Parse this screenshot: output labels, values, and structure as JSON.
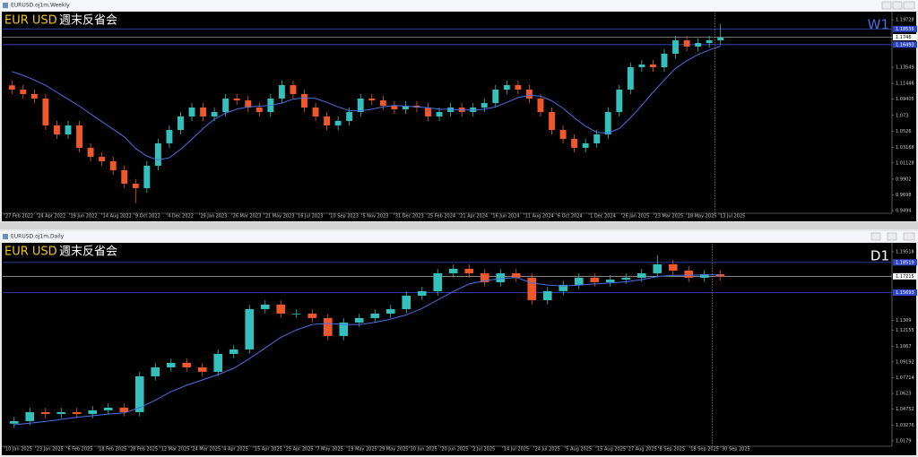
{
  "chart_data": [
    {
      "type": "candlestick",
      "window_title": "EURUSD.oj1m,Weekly",
      "symbol": "EUR USD",
      "memo": "週末反省会",
      "timeframe": "W1",
      "up_color": "#35c1bb",
      "down_color": "#f0582a",
      "ma_color": "#4a6fe3",
      "timeframe_color": "#4a6fe3",
      "open": [
        1.112,
        1.1065,
        1.1007,
        1.0949,
        1.06,
        1.0483,
        1.06,
        1.0309,
        1.0192,
        1.0134,
        1.0018,
        0.9843,
        0.9785,
        1.0076,
        1.0367,
        1.0541,
        1.0716,
        1.0832,
        1.0716,
        1.0774,
        1.0949,
        1.0925,
        1.0832,
        1.0774,
        1.0949,
        1.1123,
        1.1007,
        1.0832,
        1.0716,
        1.06,
        1.0658,
        1.0774,
        1.0949,
        1.0925,
        1.0856,
        1.0809,
        1.0856,
        1.0832,
        1.0716,
        1.0774,
        1.0832,
        1.0774,
        1.0832,
        1.0891,
        1.1065,
        1.1123,
        1.1065,
        1.0949,
        1.0774,
        1.0541,
        1.0425,
        1.0309,
        1.0367,
        1.0483,
        1.0774,
        1.1065,
        1.1356,
        1.1391,
        1.1356,
        1.1531,
        1.1705,
        1.1624,
        1.167,
        1.1705
      ],
      "high": [
        1.118,
        1.1125,
        1.1067,
        1.1009,
        1.066,
        1.066,
        1.066,
        1.0369,
        1.0252,
        1.0194,
        1.0078,
        0.9903,
        1.0136,
        1.0427,
        1.0601,
        1.0776,
        1.0892,
        1.0892,
        1.0834,
        1.1009,
        1.1009,
        1.0985,
        1.0892,
        1.1009,
        1.1183,
        1.1183,
        1.1067,
        1.0892,
        1.0776,
        1.0718,
        1.0834,
        1.1009,
        1.1009,
        1.0985,
        1.0916,
        1.0916,
        1.0916,
        1.0892,
        1.0834,
        1.0892,
        1.0892,
        1.0892,
        1.0951,
        1.1125,
        1.1183,
        1.1183,
        1.1125,
        1.1009,
        1.0834,
        1.0601,
        1.0485,
        1.0427,
        1.0543,
        1.0834,
        1.1125,
        1.1416,
        1.1451,
        1.1451,
        1.1591,
        1.1765,
        1.1765,
        1.173,
        1.1765,
        1.192
      ],
      "low": [
        1.1005,
        1.0947,
        1.0889,
        1.054,
        1.0423,
        1.0423,
        1.0249,
        1.0132,
        1.0074,
        0.9958,
        0.9783,
        0.959,
        0.9725,
        1.0016,
        1.0307,
        1.0481,
        1.0656,
        1.0656,
        1.0656,
        1.0714,
        1.0865,
        1.0772,
        1.0714,
        1.0714,
        1.0889,
        1.0947,
        1.0772,
        1.0656,
        1.054,
        1.054,
        1.0598,
        1.0714,
        1.0865,
        1.0796,
        1.0749,
        1.0749,
        1.0772,
        1.0656,
        1.0656,
        1.0714,
        1.0714,
        1.0714,
        1.0772,
        1.0831,
        1.1005,
        1.1005,
        1.0889,
        1.0714,
        1.0481,
        1.0365,
        1.0249,
        1.0249,
        1.0307,
        1.0423,
        1.0714,
        1.1005,
        1.1296,
        1.1296,
        1.1296,
        1.1471,
        1.1564,
        1.1564,
        1.161,
        1.1645
      ],
      "close": [
        1.1065,
        1.1007,
        1.0949,
        1.06,
        1.0483,
        1.06,
        1.0309,
        1.0192,
        1.0134,
        1.0018,
        0.9843,
        0.9785,
        1.0076,
        1.0367,
        1.0541,
        1.0716,
        1.0832,
        1.0716,
        1.0774,
        1.0949,
        1.0925,
        1.0832,
        1.0774,
        1.0949,
        1.1123,
        1.1007,
        1.0832,
        1.0716,
        1.06,
        1.0658,
        1.0774,
        1.0949,
        1.0925,
        1.0856,
        1.0809,
        1.0856,
        1.0832,
        1.0716,
        1.0774,
        1.0832,
        1.0774,
        1.0832,
        1.0891,
        1.1065,
        1.1123,
        1.1065,
        1.0949,
        1.0774,
        1.0541,
        1.0425,
        1.0309,
        1.0367,
        1.0483,
        1.0774,
        1.1065,
        1.1356,
        1.1391,
        1.1356,
        1.1531,
        1.1705,
        1.1624,
        1.167,
        1.1705,
        1.174
      ],
      "ma": [
        1.13,
        1.125,
        1.119,
        1.112,
        1.103,
        1.094,
        1.085,
        1.075,
        1.065,
        1.055,
        1.045,
        1.03,
        1.02,
        1.015,
        1.018,
        1.029,
        1.042,
        1.056,
        1.068,
        1.076,
        1.081,
        1.084,
        1.085,
        1.086,
        1.089,
        1.094,
        1.096,
        1.095,
        1.09,
        1.084,
        1.079,
        1.079,
        1.081,
        1.084,
        1.086,
        1.085,
        1.084,
        1.083,
        1.081,
        1.081,
        1.08,
        1.08,
        1.081,
        1.084,
        1.09,
        1.096,
        1.099,
        1.098,
        1.092,
        1.082,
        1.07,
        1.059,
        1.051,
        1.05,
        1.056,
        1.07,
        1.086,
        1.103,
        1.119,
        1.134,
        1.144,
        1.152,
        1.158,
        1.163
      ],
      "ylim": [
        0.9482,
        1.2066
      ],
      "yticks": [
        1.19728,
        1.13549,
        1.11446,
        1.09405,
        1.073,
        1.0526,
        1.03168,
        1.01128,
        0.9902,
        0.9698,
        0.9494
      ],
      "levels": [
        1.18535,
        1.16493
      ],
      "current_price": 1.1746,
      "x_labels": [
        "27 Feb 2022",
        "24 Apr 2022",
        "19 Jun 2022",
        "14 Aug 2022",
        "9 Oct 2022",
        "4 Dec 2022",
        "29 Jan 2023",
        "26 Mar 2023",
        "21 May 2023",
        "16 Jul 2023",
        "10 Sep 2023",
        "5 Nov 2023",
        "31 Dec 2023",
        "25 Feb 2024",
        "21 Apr 2024",
        "16 Jun 2024",
        "11 Aug 2024",
        "6 Oct 2024",
        "1 Dec 2024",
        "26 Jan 2025",
        "23 Mar 2025",
        "18 May 2025",
        "13 Jul 2025"
      ]
    },
    {
      "type": "candlestick",
      "window_title": "EURUSD.oj1m,Daily",
      "symbol": "EUR USD",
      "memo": "週末反省会",
      "timeframe": "D1",
      "up_color": "#35c1bb",
      "down_color": "#f0582a",
      "ma_color": "#4a6fe3",
      "timeframe_color": "#ffffff",
      "open": [
        1.034,
        1.0364,
        1.0448,
        1.0431,
        1.0448,
        1.0431,
        1.0465,
        1.049,
        1.0448,
        1.0784,
        1.0868,
        1.091,
        1.0868,
        1.0826,
        1.0994,
        1.1036,
        1.1414,
        1.1456,
        1.1372,
        1.1372,
        1.133,
        1.1162,
        1.1288,
        1.133,
        1.1372,
        1.1414,
        1.154,
        1.1582,
        1.175,
        1.1792,
        1.175,
        1.1666,
        1.175,
        1.1708,
        1.1498,
        1.1582,
        1.1641,
        1.1708,
        1.1666,
        1.1691,
        1.1708,
        1.175,
        1.1834,
        1.1775,
        1.1708,
        1.1741
      ],
      "high": [
        1.0404,
        1.0488,
        1.0488,
        1.0488,
        1.0488,
        1.0505,
        1.053,
        1.053,
        1.0824,
        1.0908,
        1.095,
        1.095,
        1.0908,
        1.1034,
        1.1076,
        1.1454,
        1.1496,
        1.1496,
        1.1412,
        1.1412,
        1.137,
        1.1328,
        1.137,
        1.1412,
        1.1454,
        1.158,
        1.1622,
        1.179,
        1.1832,
        1.1832,
        1.179,
        1.179,
        1.179,
        1.1748,
        1.1622,
        1.1681,
        1.1748,
        1.1748,
        1.1731,
        1.1748,
        1.179,
        1.1919,
        1.1874,
        1.1815,
        1.1781,
        1.1781
      ],
      "low": [
        1.03,
        1.0324,
        1.0391,
        1.0391,
        1.0391,
        1.0391,
        1.0425,
        1.0408,
        1.0408,
        1.0744,
        1.0828,
        1.0828,
        1.0786,
        1.0786,
        1.0954,
        1.0996,
        1.1374,
        1.1332,
        1.1332,
        1.129,
        1.1122,
        1.1122,
        1.1248,
        1.129,
        1.1332,
        1.1374,
        1.15,
        1.1542,
        1.171,
        1.171,
        1.1626,
        1.1626,
        1.1668,
        1.1458,
        1.1458,
        1.1542,
        1.1601,
        1.1626,
        1.1626,
        1.1651,
        1.1668,
        1.171,
        1.1735,
        1.1668,
        1.1668,
        1.1682
      ],
      "close": [
        1.0364,
        1.0448,
        1.0431,
        1.0448,
        1.0431,
        1.0465,
        1.049,
        1.0448,
        1.0784,
        1.0868,
        1.091,
        1.0868,
        1.0826,
        1.0994,
        1.1036,
        1.1414,
        1.1456,
        1.1372,
        1.1372,
        1.133,
        1.1162,
        1.1288,
        1.133,
        1.1372,
        1.1414,
        1.154,
        1.1582,
        1.175,
        1.1792,
        1.175,
        1.1666,
        1.175,
        1.1708,
        1.1498,
        1.1582,
        1.1641,
        1.1708,
        1.1666,
        1.1691,
        1.1708,
        1.175,
        1.1834,
        1.1775,
        1.1708,
        1.1741,
        1.1722
      ],
      "ma": [
        1.033,
        1.0345,
        1.036,
        1.038,
        1.04,
        1.0415,
        1.043,
        1.044,
        1.049,
        1.056,
        1.064,
        1.07,
        1.075,
        1.08,
        1.086,
        1.095,
        1.105,
        1.115,
        1.122,
        1.127,
        1.128,
        1.127,
        1.127,
        1.129,
        1.132,
        1.136,
        1.142,
        1.15,
        1.158,
        1.165,
        1.168,
        1.17,
        1.171,
        1.166,
        1.164,
        1.163,
        1.164,
        1.165,
        1.166,
        1.167,
        1.169,
        1.172,
        1.173,
        1.173,
        1.1735,
        1.1735
      ],
      "ylim": [
        1.0145,
        1.2027
      ],
      "yticks": [
        1.19518,
        1.1309,
        1.12155,
        1.1067,
        1.09192,
        1.07714,
        1.0623,
        1.04752,
        1.03276,
        1.0179
      ],
      "levels": [
        1.18519,
        1.15693
      ],
      "current_price": 1.17215,
      "x_labels": [
        "10 Jan 2025",
        "23 Jan 2025",
        "6 Feb 2025",
        "18 Feb 2025",
        "28 Feb 2025",
        "12 Mar 2025",
        "24 Mar 2025",
        "4 Apr 2025",
        "15 Apr 2025",
        "25 Apr 2025",
        "7 May 2025",
        "19 May 2025",
        "29 May 2025",
        "10 Jun 2025",
        "20 Jun 2025",
        "2 Jul 2025",
        "14 Jul 2025",
        "24 Jul 2025",
        "5 Aug 2025",
        "15 Aug 2025",
        "27 Aug 2025",
        "8 Sep 2025",
        "18 Sep 2025",
        "30 Sep 2025"
      ]
    }
  ]
}
